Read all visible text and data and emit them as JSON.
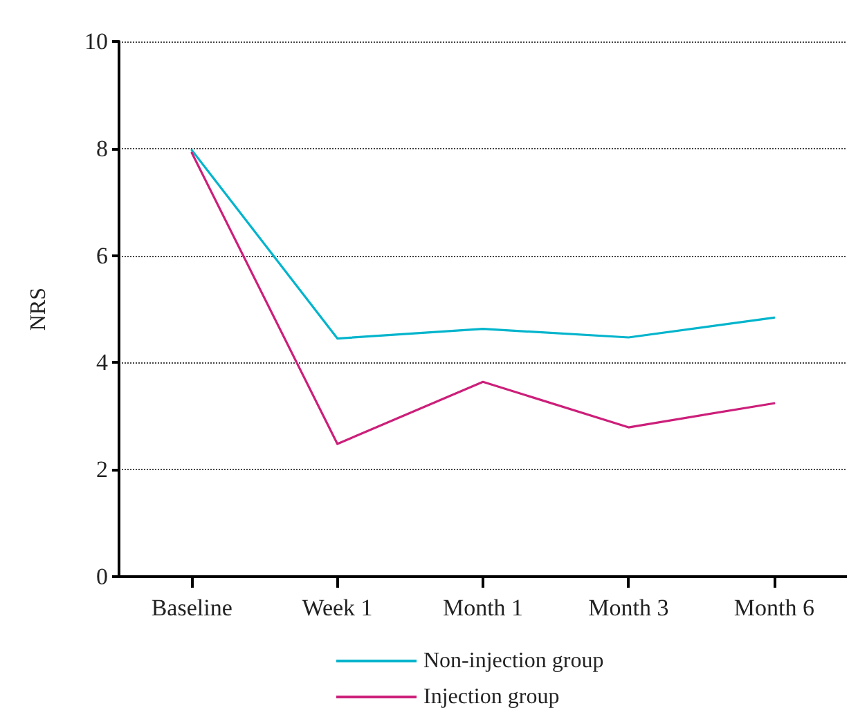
{
  "chart_data": {
    "type": "line",
    "ylabel": "NRS",
    "categories": [
      "Baseline",
      "Week 1",
      "Month 1",
      "Month 3",
      "Month 6"
    ],
    "series": [
      {
        "name": "Non-injection group",
        "color": "#00b4cc",
        "values": [
          7.97,
          4.45,
          4.63,
          4.47,
          4.84
        ]
      },
      {
        "name": "Injection group",
        "color": "#cc1f7a",
        "values": [
          7.92,
          2.48,
          3.64,
          2.79,
          3.24
        ]
      }
    ],
    "ylim": [
      0,
      10
    ],
    "yticks": [
      0,
      2,
      4,
      6,
      8,
      10
    ],
    "grid": "y",
    "line_style": "solid",
    "marker": "none",
    "legend": "bottom"
  }
}
